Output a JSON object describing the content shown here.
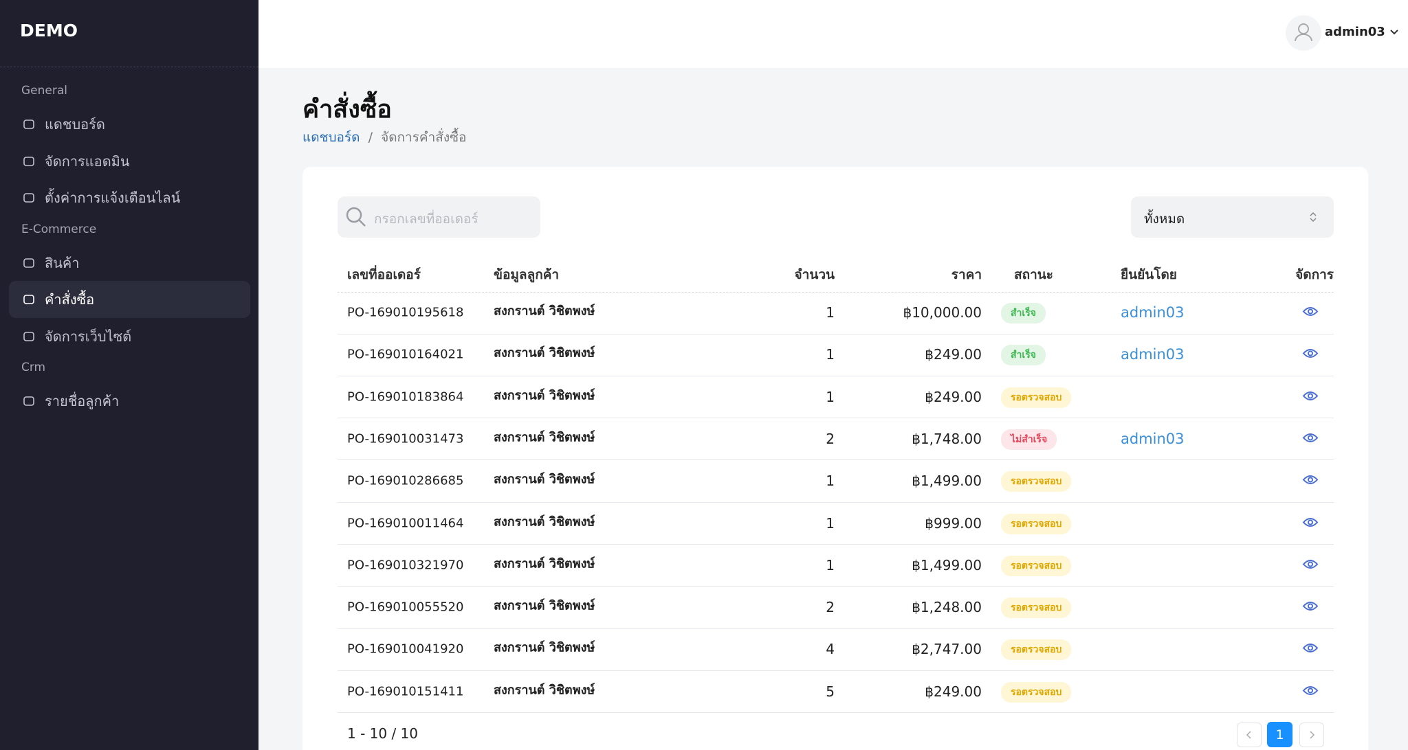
{
  "sidebar": {
    "brand": "DEMO",
    "sections": [
      {
        "title": "General",
        "items": [
          {
            "label": "แดชบอร์ด"
          },
          {
            "label": "จัดการแอดมิน"
          },
          {
            "label": "ตั้งค่าการแจ้งเตือนไลน์"
          }
        ]
      },
      {
        "title": "E-Commerce",
        "items": [
          {
            "label": "สินค้า"
          },
          {
            "label": "คำสั่งซื้อ",
            "active": true
          },
          {
            "label": "จัดการเว็บไซต์"
          }
        ]
      },
      {
        "title": "Crm",
        "items": [
          {
            "label": "รายชื่อลูกค้า"
          }
        ]
      }
    ]
  },
  "header": {
    "user": "admin03"
  },
  "page": {
    "title": "คำสั่งซื้อ",
    "breadcrumb": [
      "แดชบอร์ด",
      "จัดการคำสั่งซื้อ"
    ]
  },
  "filters": {
    "search_placeholder": "กรอกเลขที่ออเดอร์",
    "status_select": "ทั้งหมด"
  },
  "status_colors": {
    "สำเร็จ": {
      "text": "#3fb651",
      "background": "#e3f6e6"
    },
    "รอตรวจสอบ": {
      "text": "#e0a800",
      "background": "#fff6d5"
    },
    "ไม่สำเร็จ": {
      "text": "#e5485d",
      "background": "#fde6e9"
    }
  },
  "table": {
    "columns": [
      "เลขที่ออเดอร์",
      "ข้อมูลลูกค้า",
      "จำนวน",
      "ราคา",
      "สถานะ",
      "ยืนยันโดย",
      "จัดการ"
    ],
    "rows": [
      {
        "order": "PO-169010195618",
        "customer": "สงกรานต์ วิชิตพงษ์",
        "quantity": 1,
        "price": "฿10,000.00",
        "status": "สำเร็จ",
        "confirmed_by": "admin03"
      },
      {
        "order": "PO-169010164021",
        "customer": "สงกรานต์ วิชิตพงษ์",
        "quantity": 1,
        "price": "฿249.00",
        "status": "สำเร็จ",
        "confirmed_by": "admin03"
      },
      {
        "order": "PO-169010183864",
        "customer": "สงกรานต์ วิชิตพงษ์",
        "quantity": 1,
        "price": "฿249.00",
        "status": "รอตรวจสอบ",
        "confirmed_by": null
      },
      {
        "order": "PO-169010031473",
        "customer": "สงกรานต์ วิชิตพงษ์",
        "quantity": 2,
        "price": "฿1,748.00",
        "status": "ไม่สำเร็จ",
        "confirmed_by": "admin03"
      },
      {
        "order": "PO-169010286685",
        "customer": "สงกรานต์ วิชิตพงษ์",
        "quantity": 1,
        "price": "฿1,499.00",
        "status": "รอตรวจสอบ",
        "confirmed_by": null
      },
      {
        "order": "PO-169010011464",
        "customer": "สงกรานต์ วิชิตพงษ์",
        "quantity": 1,
        "price": "฿999.00",
        "status": "รอตรวจสอบ",
        "confirmed_by": null
      },
      {
        "order": "PO-169010321970",
        "customer": "สงกรานต์ วิชิตพงษ์",
        "quantity": 1,
        "price": "฿1,499.00",
        "status": "รอตรวจสอบ",
        "confirmed_by": null
      },
      {
        "order": "PO-169010055520",
        "customer": "สงกรานต์ วิชิตพงษ์",
        "quantity": 2,
        "price": "฿1,248.00",
        "status": "รอตรวจสอบ",
        "confirmed_by": null
      },
      {
        "order": "PO-169010041920",
        "customer": "สงกรานต์ วิชิตพงษ์",
        "quantity": 4,
        "price": "฿2,747.00",
        "status": "รอตรวจสอบ",
        "confirmed_by": null
      },
      {
        "order": "PO-169010151411",
        "customer": "สงกรานต์ วิชิตพงษ์",
        "quantity": 5,
        "price": "฿249.00",
        "status": "รอตรวจสอบ",
        "confirmed_by": null
      }
    ]
  },
  "pagination": {
    "summary": "1 - 10 / 10",
    "current": 1
  }
}
